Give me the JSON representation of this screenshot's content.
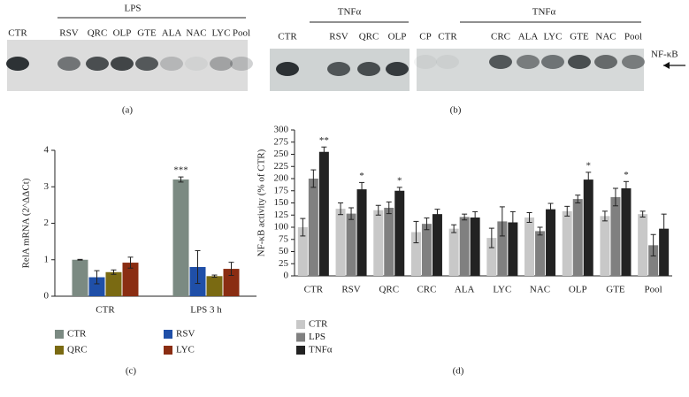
{
  "gels": {
    "a": {
      "header": "LPS",
      "lanes": [
        "CTR",
        "RSV",
        "QRC",
        "OLP",
        "GTE",
        "ALA",
        "NAC",
        "LYC",
        "Pool"
      ],
      "caption": "(a)"
    },
    "b": {
      "left": {
        "header": "TNFα",
        "lanes": [
          "CTR",
          "RSV",
          "QRC",
          "OLP"
        ]
      },
      "right": {
        "header": "TNFα",
        "lanes": [
          "CP",
          "CTR",
          "CRC",
          "ALA",
          "LYC",
          "GTE",
          "NAC",
          "Pool"
        ]
      },
      "marker": "NF-κB",
      "caption": "(b)"
    }
  },
  "chart_data": [
    {
      "type": "bar",
      "caption": "(c)",
      "y_label": "RelA mRNA (2^ΔΔCt)",
      "categories": [
        "CTR",
        "LPS 3 h"
      ],
      "ylim": [
        0,
        4
      ],
      "yticks": [
        0,
        1,
        2,
        3,
        4
      ],
      "series": [
        {
          "name": "CTR",
          "color": "#7b8a82",
          "values": [
            1.0,
            3.2
          ],
          "errors": [
            0.01,
            0.07
          ],
          "annotations": [
            null,
            "***"
          ]
        },
        {
          "name": "RSV",
          "color": "#1f4fa8",
          "values": [
            0.52,
            0.8
          ],
          "errors": [
            0.18,
            0.45
          ]
        },
        {
          "name": "QRC",
          "color": "#7a6a12",
          "values": [
            0.66,
            0.55
          ],
          "errors": [
            0.06,
            0.03
          ]
        },
        {
          "name": "LYC",
          "color": "#8a2d12",
          "values": [
            0.92,
            0.75
          ],
          "errors": [
            0.15,
            0.18
          ]
        }
      ]
    },
    {
      "type": "bar",
      "caption": "(d)",
      "y_label": "NF-κB activity (% of CTR)",
      "categories": [
        "CTR",
        "RSV",
        "QRC",
        "CRC",
        "ALA",
        "LYC",
        "NAC",
        "OLP",
        "GTE",
        "Pool"
      ],
      "ylim": [
        0,
        300
      ],
      "yticks": [
        0,
        25,
        50,
        75,
        100,
        125,
        150,
        175,
        200,
        225,
        250,
        275,
        300
      ],
      "series": [
        {
          "name": "CTR",
          "color": "#c8c8c8",
          "values": [
            100,
            138,
            135,
            90,
            97,
            78,
            120,
            133,
            123,
            127
          ],
          "errors": [
            18,
            12,
            10,
            22,
            8,
            20,
            10,
            10,
            10,
            6
          ]
        },
        {
          "name": "LPS",
          "color": "#808080",
          "values": [
            200,
            128,
            140,
            107,
            121,
            112,
            92,
            158,
            162,
            63
          ],
          "errors": [
            18,
            12,
            12,
            12,
            6,
            30,
            8,
            8,
            18,
            22
          ]
        },
        {
          "name": "TNFα",
          "color": "#222222",
          "values": [
            255,
            178,
            175,
            127,
            120,
            110,
            137,
            198,
            180,
            97
          ],
          "errors": [
            10,
            14,
            7,
            10,
            12,
            22,
            12,
            15,
            14,
            30
          ],
          "annotations": [
            "**",
            "*",
            "*",
            null,
            null,
            null,
            null,
            "*",
            "*",
            null
          ]
        }
      ]
    }
  ]
}
